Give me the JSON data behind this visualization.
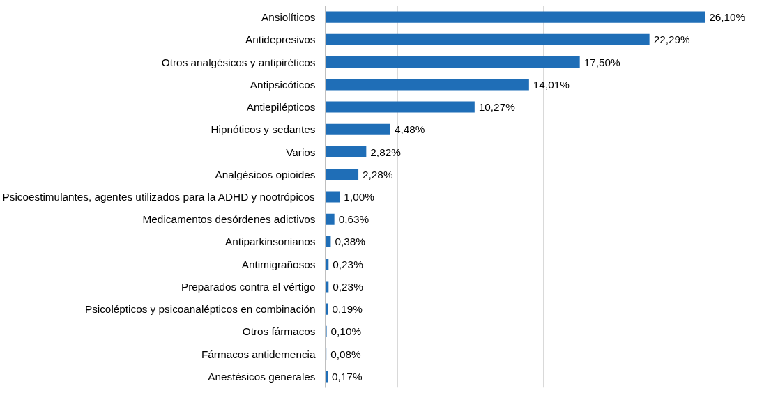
{
  "chart_data": {
    "type": "bar",
    "orientation": "horizontal",
    "categories": [
      "Ansiolíticos",
      "Antidepresivos",
      "Otros analgésicos y antipiréticos",
      "Antipsicóticos",
      "Antiepilépticos",
      "Hipnóticos y sedantes",
      "Varios",
      "Analgésicos opioides",
      "Psicoestimulantes, agentes utilizados para la ADHD y nootrópicos",
      "Medicamentos desórdenes adictivos",
      "Antiparkinsonianos",
      "Antimigrañosos",
      "Preparados contra el vértigo",
      "Psicolépticos y psicoanalépticos en combinación",
      "Otros fármacos",
      "Fármacos antidemencia",
      "Anestésicos generales"
    ],
    "values": [
      26.1,
      22.29,
      17.5,
      14.01,
      10.27,
      4.48,
      2.82,
      2.28,
      1.0,
      0.63,
      0.38,
      0.23,
      0.23,
      0.19,
      0.1,
      0.08,
      0.17
    ],
    "value_labels": [
      "26,10%",
      "22,29%",
      "17,50%",
      "14,01%",
      "10,27%",
      "4,48%",
      "2,82%",
      "2,28%",
      "1,00%",
      "0,63%",
      "0,38%",
      "0,23%",
      "0,23%",
      "0,19%",
      "0,10%",
      "0,08%",
      "0,17%"
    ],
    "color": "#1f6eb7",
    "grid": "x",
    "tick_labels": "y"
  }
}
